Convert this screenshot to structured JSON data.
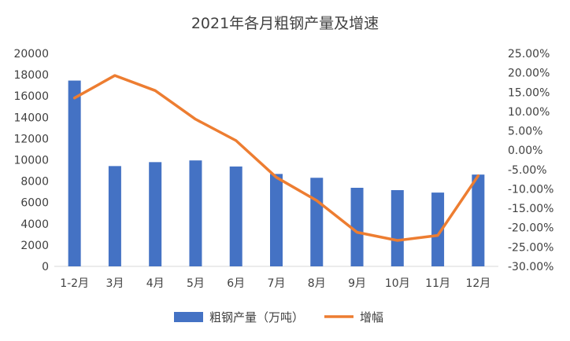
{
  "chart_data": {
    "type": "bar",
    "title": "2021年各月粗钢产量及增速",
    "categories": [
      "1-2月",
      "3月",
      "4月",
      "5月",
      "6月",
      "7月",
      "8月",
      "9月",
      "10月",
      "11月",
      "12月"
    ],
    "series": [
      {
        "name": "粗钢产量（万吨）",
        "type": "bar",
        "axis": "left",
        "color": "#4472C4",
        "values": [
          17450,
          9420,
          9790,
          9950,
          9380,
          8680,
          8320,
          7380,
          7160,
          6930,
          8620
        ]
      },
      {
        "name": "增幅",
        "type": "line",
        "axis": "right",
        "color": "#ED7D31",
        "values": [
          13.5,
          19.3,
          15.4,
          8.0,
          2.5,
          -7.0,
          -13.0,
          -21.2,
          -23.3,
          -22.0,
          -6.6
        ]
      }
    ],
    "y_left": {
      "min": 0,
      "max": 20000,
      "step": 2000,
      "ticks": [
        "0",
        "2000",
        "4000",
        "6000",
        "8000",
        "10000",
        "12000",
        "14000",
        "16000",
        "18000",
        "20000"
      ]
    },
    "y_right": {
      "min": -30,
      "max": 25,
      "step": 5,
      "ticks": [
        "-30.00%",
        "-25.00%",
        "-20.00%",
        "-15.00%",
        "-10.00%",
        "-5.00%",
        "0.00%",
        "5.00%",
        "10.00%",
        "15.00%",
        "20.00%",
        "25.00%"
      ]
    },
    "grid": false,
    "legend": "bottom"
  }
}
